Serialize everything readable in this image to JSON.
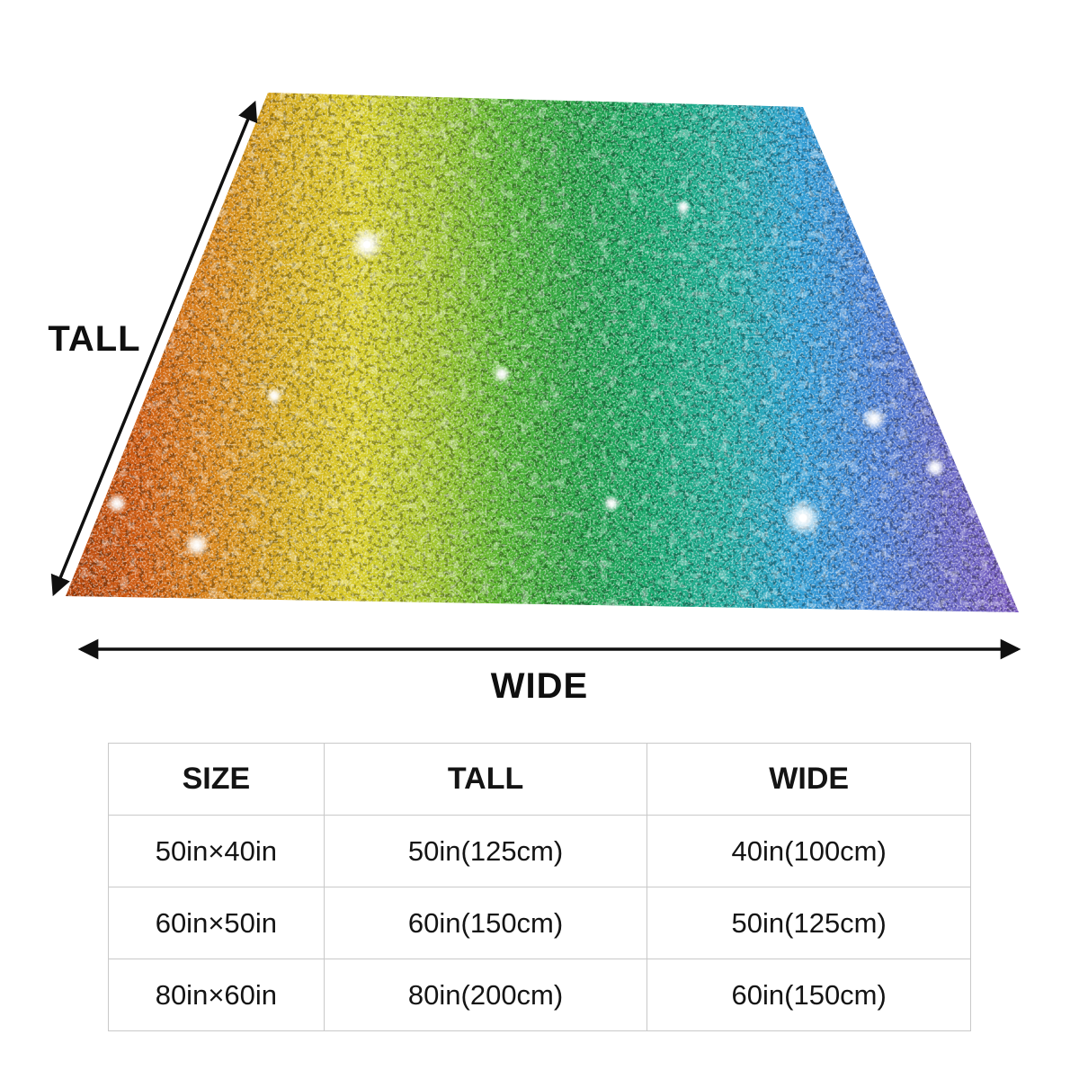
{
  "diagram": {
    "tall_label": "TALL",
    "wide_label": "WIDE",
    "gradient_stops": [
      "#b8470e",
      "#cf5c12",
      "#d9861a",
      "#d7ae20",
      "#d9ce2a",
      "#a2c42c",
      "#55b432",
      "#27a348",
      "#18a86e",
      "#22ad9e",
      "#2f9fd4",
      "#4b84d8",
      "#6a6cc8",
      "#7e5ec2"
    ]
  },
  "table": {
    "headers": [
      "SIZE",
      "TALL",
      "WIDE"
    ],
    "rows": [
      [
        "50in×40in",
        "50in(125cm)",
        "40in(100cm)"
      ],
      [
        "60in×50in",
        "60in(150cm)",
        "50in(125cm)"
      ],
      [
        "80in×60in",
        "80in(200cm)",
        "60in(150cm)"
      ]
    ]
  }
}
